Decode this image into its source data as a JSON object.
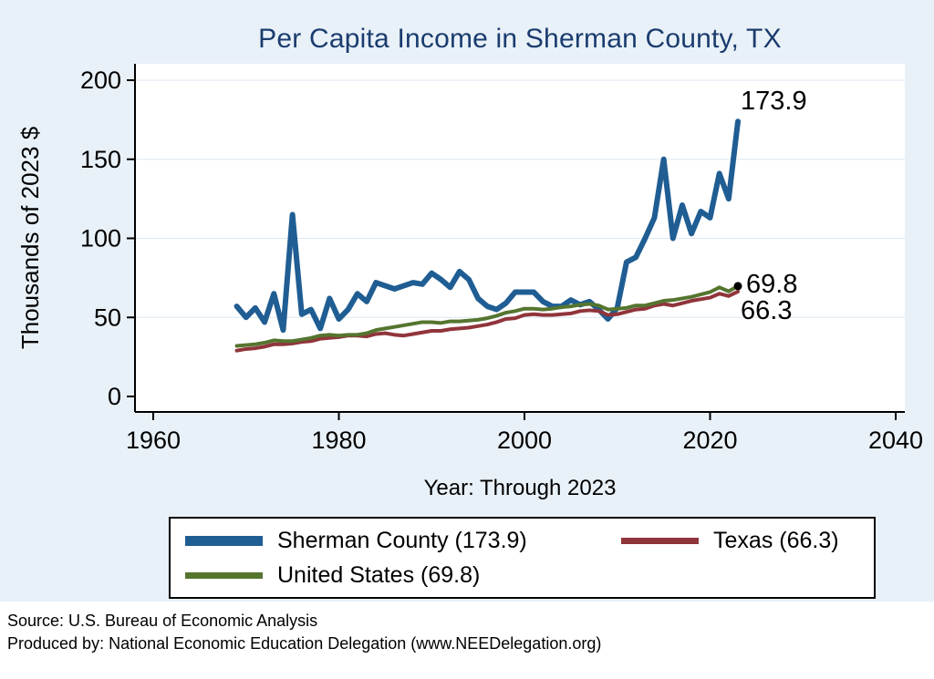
{
  "chart_data": {
    "type": "line",
    "title": "Per Capita Income in Sherman County, TX",
    "xlabel": "Year: Through 2023",
    "ylabel": "Thousands of 2023 $",
    "xlim": [
      1960,
      2040
    ],
    "ylim": [
      0,
      200
    ],
    "xticks": [
      1960,
      1980,
      2000,
      2020,
      2040
    ],
    "yticks": [
      0,
      50,
      100,
      150,
      200
    ],
    "grid": true,
    "legend_position": "bottom",
    "x": [
      1969,
      1970,
      1971,
      1972,
      1973,
      1974,
      1975,
      1976,
      1977,
      1978,
      1979,
      1980,
      1981,
      1982,
      1983,
      1984,
      1985,
      1986,
      1987,
      1988,
      1989,
      1990,
      1991,
      1992,
      1993,
      1994,
      1995,
      1996,
      1997,
      1998,
      1999,
      2000,
      2001,
      2002,
      2003,
      2004,
      2005,
      2006,
      2007,
      2008,
      2009,
      2010,
      2011,
      2012,
      2013,
      2014,
      2015,
      2016,
      2017,
      2018,
      2019,
      2020,
      2021,
      2022,
      2023
    ],
    "series": [
      {
        "name": "Sherman County",
        "color": "#1f5d93",
        "width": 6,
        "values": [
          57,
          50,
          56,
          47,
          65,
          42,
          115,
          52,
          55,
          43,
          62,
          49,
          55,
          65,
          60,
          72,
          70,
          68,
          70,
          72,
          71,
          78,
          74,
          69,
          79,
          74,
          62,
          57,
          55,
          59,
          66,
          66,
          66,
          60,
          57,
          57,
          61,
          58,
          60,
          55,
          49,
          56,
          85,
          88,
          100,
          113,
          150,
          100,
          121,
          103,
          117,
          113,
          141,
          125,
          173.9
        ]
      },
      {
        "name": "Texas",
        "color": "#90353b",
        "width": 4,
        "values": [
          29,
          30,
          30.5,
          31.5,
          33,
          33,
          33.5,
          34.5,
          35,
          36.5,
          37,
          37.5,
          38.5,
          38.5,
          38,
          39.5,
          40,
          39,
          38.5,
          39.5,
          40.5,
          41.5,
          41.5,
          42.5,
          43,
          43.5,
          44.5,
          45.5,
          47,
          49,
          49.5,
          51.5,
          52,
          51.5,
          51.5,
          52,
          52.5,
          54,
          54.5,
          54,
          51.5,
          52,
          53.5,
          55,
          55.5,
          57.5,
          58.5,
          57.5,
          59,
          60.5,
          61.5,
          62.5,
          65,
          63.5,
          66.3
        ]
      },
      {
        "name": "United States",
        "color": "#55752f",
        "width": 4,
        "values": [
          32,
          32.5,
          33,
          34,
          35.5,
          35,
          35,
          36,
          37,
          38.5,
          39,
          38.5,
          39,
          39,
          40,
          42,
          43,
          44,
          45,
          46,
          47,
          47,
          46.5,
          47.5,
          47.5,
          48,
          48.5,
          49.5,
          51,
          53,
          54,
          55.5,
          55.5,
          55,
          55.5,
          56.5,
          57,
          58,
          58.5,
          57.5,
          55,
          55.5,
          56,
          57.5,
          57.5,
          59,
          60.5,
          61,
          62,
          63,
          64.5,
          66,
          69,
          66.5,
          69.8
        ]
      }
    ],
    "end_marker": {
      "x": 2023,
      "y": 69.8
    }
  },
  "annotations": {
    "sherman_end": "173.9",
    "us_end": "69.8",
    "texas_end": "66.3"
  },
  "legend": {
    "items": [
      {
        "label": "Sherman County (173.9)",
        "color": "#1f5d93",
        "thickness": 11
      },
      {
        "label": "Texas (66.3)",
        "color": "#90353b",
        "thickness": 7
      },
      {
        "label": "United States (69.8)",
        "color": "#55752f",
        "thickness": 7
      }
    ]
  },
  "footer": {
    "line1": "Source: U.S. Bureau of Economic Analysis",
    "line2": "Produced by: National Economic Education Delegation (www.NEEDelegation.org)"
  }
}
